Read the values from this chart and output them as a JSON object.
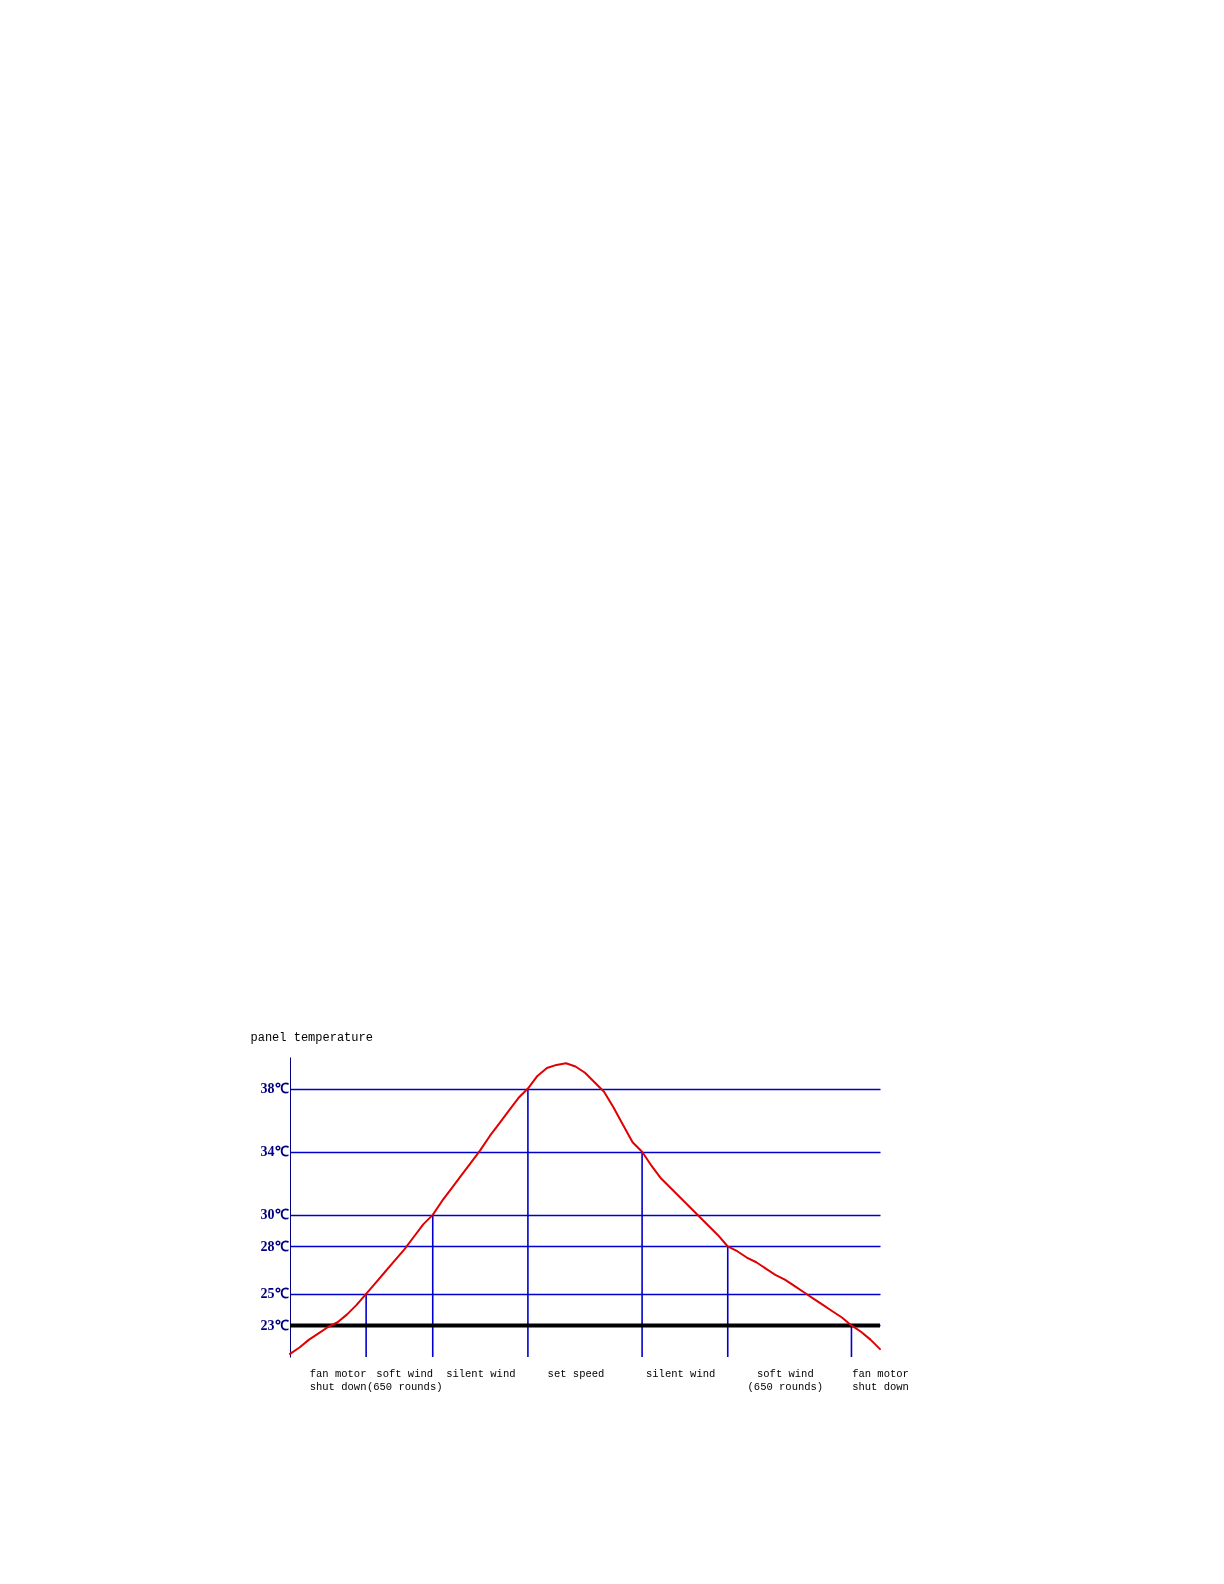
{
  "chart_data": {
    "type": "line",
    "ylabel": "panel temperature",
    "categories": [
      null,
      null,
      null,
      null,
      null,
      "fan motor\nshut down",
      null,
      null,
      null,
      null,
      null,
      null,
      "soft wind\n(650 rounds)",
      null,
      null,
      null,
      null,
      null,
      null,
      null,
      "silent wind",
      null,
      null,
      null,
      null,
      null,
      null,
      null,
      null,
      null,
      "set speed",
      null,
      null,
      null,
      null,
      null,
      null,
      null,
      null,
      null,
      null,
      "silent wind",
      null,
      null,
      null,
      null,
      null,
      null,
      null,
      null,
      null,
      null,
      "soft wind\n(650 rounds)",
      null,
      null,
      null,
      null,
      null,
      null,
      null,
      null,
      null,
      "fan motor\nshut down"
    ],
    "yticks": [
      {
        "value": 23,
        "label": "23℃"
      },
      {
        "value": 25,
        "label": "25℃"
      },
      {
        "value": 28,
        "label": "28℃"
      },
      {
        "value": 30,
        "label": "30℃"
      },
      {
        "value": 34,
        "label": "34℃"
      },
      {
        "value": 38,
        "label": "38℃"
      }
    ],
    "ylim": [
      21,
      40
    ],
    "grid": "y",
    "series": [
      {
        "color": "#e00000",
        "values": [
          21.2,
          21.6,
          22.1,
          22.5,
          22.9,
          23.2,
          23.7,
          24.3,
          25,
          25.7,
          26.4,
          27.1,
          27.8,
          28.6,
          29.4,
          30,
          30.9,
          31.7,
          32.5,
          33.3,
          34.1,
          35,
          35.8,
          36.6,
          37.4,
          38,
          38.8,
          39.3,
          39.5,
          39.6,
          39.4,
          39,
          38.4,
          37.8,
          36.8,
          35.7,
          34.6,
          34,
          33.1,
          32.3,
          31.7,
          31.1,
          30.5,
          29.9,
          29.3,
          28.7,
          28,
          27.7,
          27.3,
          27,
          26.6,
          26.2,
          25.9,
          25.5,
          25.1,
          24.7,
          24.3,
          23.9,
          23.5,
          23,
          22.6,
          22.1,
          21.5
        ]
      },
      {
        "type": "bar",
        "color": "#0000cc",
        "values": [
          null,
          null,
          null,
          null,
          null,
          null,
          null,
          null,
          25,
          null,
          null,
          null,
          null,
          null,
          null,
          30,
          null,
          null,
          null,
          null,
          null,
          null,
          null,
          null,
          null,
          38,
          null,
          null,
          null,
          null,
          null,
          null,
          null,
          null,
          null,
          null,
          null,
          34,
          null,
          null,
          null,
          null,
          null,
          null,
          null,
          null,
          28,
          null,
          null,
          null,
          null,
          null,
          null,
          null,
          null,
          null,
          null,
          null,
          null,
          23,
          null,
          null,
          null
        ]
      }
    ],
    "ref_lines": [
      {
        "axis": "y",
        "value": 23,
        "color": "#000000"
      }
    ]
  }
}
